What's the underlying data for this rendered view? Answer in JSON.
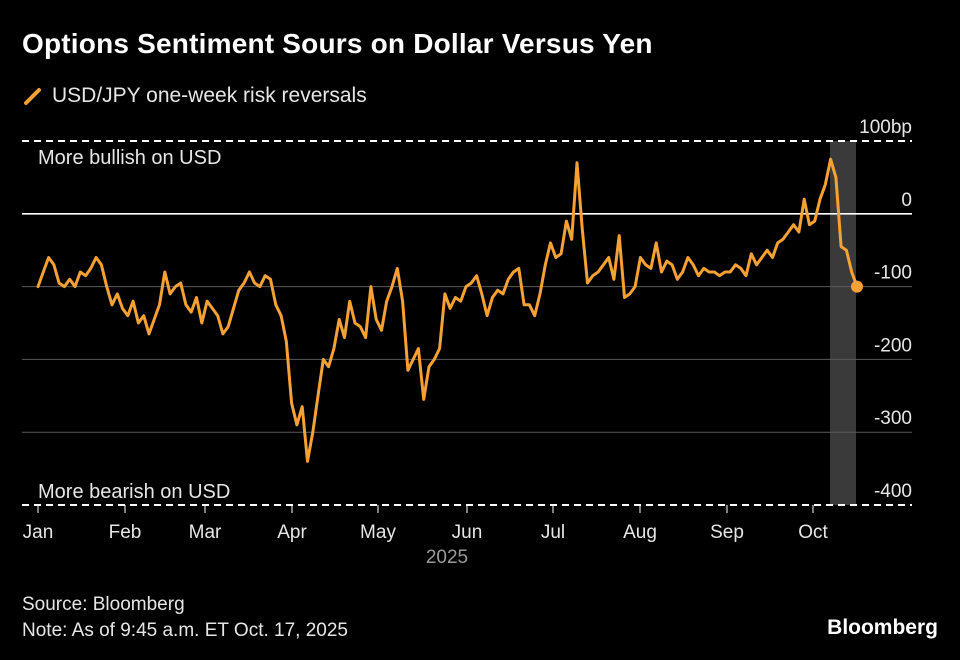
{
  "header": {
    "title": "Options Sentiment Sours on Dollar Versus Yen",
    "legend_label": "USD/JPY one-week risk reversals"
  },
  "footer": {
    "source": "Source: Bloomberg",
    "note": "Note: As of 9:45 a.m. ET Oct. 17, 2025",
    "brand": "Bloomberg"
  },
  "colors": {
    "background": "#000000",
    "line": "#f5a134",
    "grid": "#5a5a5a",
    "zero_line": "#ffffff",
    "highlight": "#3a3a3a",
    "text": "#e6e6e6"
  },
  "chart_data": {
    "type": "line",
    "title": "Options Sentiment Sours on Dollar Versus Yen",
    "series": [
      {
        "name": "USD/JPY one-week risk reversals",
        "values": [
          -100,
          -80,
          -60,
          -70,
          -95,
          -100,
          -90,
          -100,
          -80,
          -85,
          -75,
          -60,
          -70,
          -100,
          -125,
          -110,
          -130,
          -140,
          -120,
          -150,
          -140,
          -165,
          -145,
          -125,
          -80,
          -110,
          -100,
          -95,
          -125,
          -135,
          -115,
          -150,
          -120,
          -130,
          -140,
          -165,
          -155,
          -130,
          -105,
          -95,
          -80,
          -95,
          -100,
          -85,
          -90,
          -125,
          -140,
          -175,
          -260,
          -290,
          -265,
          -340,
          -300,
          -250,
          -200,
          -210,
          -185,
          -145,
          -170,
          -120,
          -150,
          -155,
          -170,
          -100,
          -145,
          -160,
          -120,
          -100,
          -75,
          -120,
          -215,
          -200,
          -185,
          -255,
          -210,
          -200,
          -185,
          -110,
          -130,
          -115,
          -120,
          -100,
          -95,
          -85,
          -110,
          -140,
          -115,
          -105,
          -110,
          -90,
          -80,
          -75,
          -125,
          -125,
          -140,
          -110,
          -70,
          -40,
          -60,
          -55,
          -10,
          -35,
          70,
          -20,
          -95,
          -85,
          -80,
          -70,
          -60,
          -90,
          -30,
          -115,
          -110,
          -100,
          -60,
          -70,
          -75,
          -40,
          -80,
          -65,
          -70,
          -90,
          -80,
          -60,
          -70,
          -85,
          -75,
          -80,
          -80,
          -85,
          -80,
          -80,
          -70,
          -75,
          -85,
          -55,
          -70,
          -60,
          -50,
          -60,
          -40,
          -35,
          -25,
          -15,
          -25,
          20,
          -15,
          -10,
          20,
          40,
          75,
          50,
          -45,
          -50,
          -80,
          -100
        ]
      }
    ],
    "x_tick_labels": [
      "Jan",
      "Feb",
      "Mar",
      "Apr",
      "May",
      "Jun",
      "Jul",
      "Aug",
      "Sep",
      "Oct"
    ],
    "x_year_label": "2025",
    "y_ticks": [
      100,
      0,
      -100,
      -200,
      -300,
      -400
    ],
    "y_tick_labels": [
      "100bp",
      "0",
      "-100",
      "-200",
      "-300",
      "-400"
    ],
    "ylim": [
      -400,
      100
    ],
    "annotations": {
      "top": "More bullish on USD",
      "bottom": "More bearish on USD"
    },
    "highlight_period": "Oct 10 – Oct 17, 2025"
  }
}
